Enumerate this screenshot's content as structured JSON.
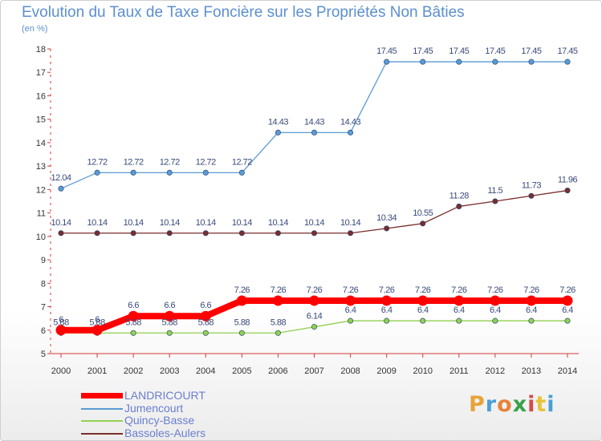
{
  "chart_data": {
    "type": "line",
    "title": "Evolution du Taux de Taxe Foncière sur les Propriétés Non Bâties",
    "ylabel": "(en %)",
    "xlabel": "",
    "x": [
      "2000",
      "2001",
      "2002",
      "2003",
      "2004",
      "2005",
      "2006",
      "2007",
      "2008",
      "2009",
      "2010",
      "2011",
      "2012",
      "2013",
      "2014"
    ],
    "ylim": [
      5,
      18
    ],
    "yticks": [
      5,
      6,
      7,
      8,
      9,
      10,
      11,
      12,
      13,
      14,
      15,
      16,
      17,
      18
    ],
    "grid": false,
    "series": [
      {
        "name": "LANDRICOURT",
        "color": "#ff0000",
        "values": [
          6,
          6,
          6.6,
          6.6,
          6.6,
          7.26,
          7.26,
          7.26,
          7.26,
          7.26,
          7.26,
          7.26,
          7.26,
          7.26,
          7.26
        ],
        "labels": [
          "6",
          "6",
          "6.6",
          "6.6",
          "6.6",
          "7.26",
          "7.26",
          "7.26",
          "7.26",
          "7.26",
          "7.26",
          "7.26",
          "7.26",
          "7.26",
          "7.26"
        ]
      },
      {
        "name": "Jumencourt",
        "color": "#5b9bd5",
        "values": [
          12.04,
          12.72,
          12.72,
          12.72,
          12.72,
          12.72,
          14.43,
          14.43,
          14.43,
          17.45,
          17.45,
          17.45,
          17.45,
          17.45,
          17.45
        ],
        "labels": [
          "12.04",
          "12.72",
          "12.72",
          "12.72",
          "12.72",
          "12.72",
          "14.43",
          "14.43",
          "14.43",
          "17.45",
          "17.45",
          "17.45",
          "17.45",
          "17.45",
          "17.45"
        ]
      },
      {
        "name": "Quincy-Basse",
        "color": "#92d050",
        "values": [
          5.88,
          5.88,
          5.88,
          5.88,
          5.88,
          5.88,
          5.88,
          6.14,
          6.4,
          6.4,
          6.4,
          6.4,
          6.4,
          6.4,
          6.4
        ],
        "labels": [
          "5.88",
          "5.88",
          "5.88",
          "5.88",
          "5.88",
          "5.88",
          "5.88",
          "6.14",
          "6.4",
          "6.4",
          "6.4",
          "6.4",
          "6.4",
          "6.4",
          "6.4"
        ]
      },
      {
        "name": "Bassoles-Aulers",
        "color": "#7b2c2c",
        "values": [
          10.14,
          10.14,
          10.14,
          10.14,
          10.14,
          10.14,
          10.14,
          10.14,
          10.14,
          10.34,
          10.55,
          11.28,
          11.5,
          11.73,
          11.96
        ],
        "labels": [
          "10.14",
          "10.14",
          "10.14",
          "10.14",
          "10.14",
          "10.14",
          "10.14",
          "10.14",
          "10.14",
          "10.34",
          "10.55",
          "11.28",
          "11.5",
          "11.73",
          "11.96"
        ]
      }
    ]
  },
  "branding": {
    "logo_text": "Proxiti",
    "logo_colors": [
      "#e8a33a",
      "#4a9fd6",
      "#e8823a",
      "#3aa14a",
      "#d64a4a",
      "#e8c33a",
      "#4a9fd6"
    ]
  }
}
